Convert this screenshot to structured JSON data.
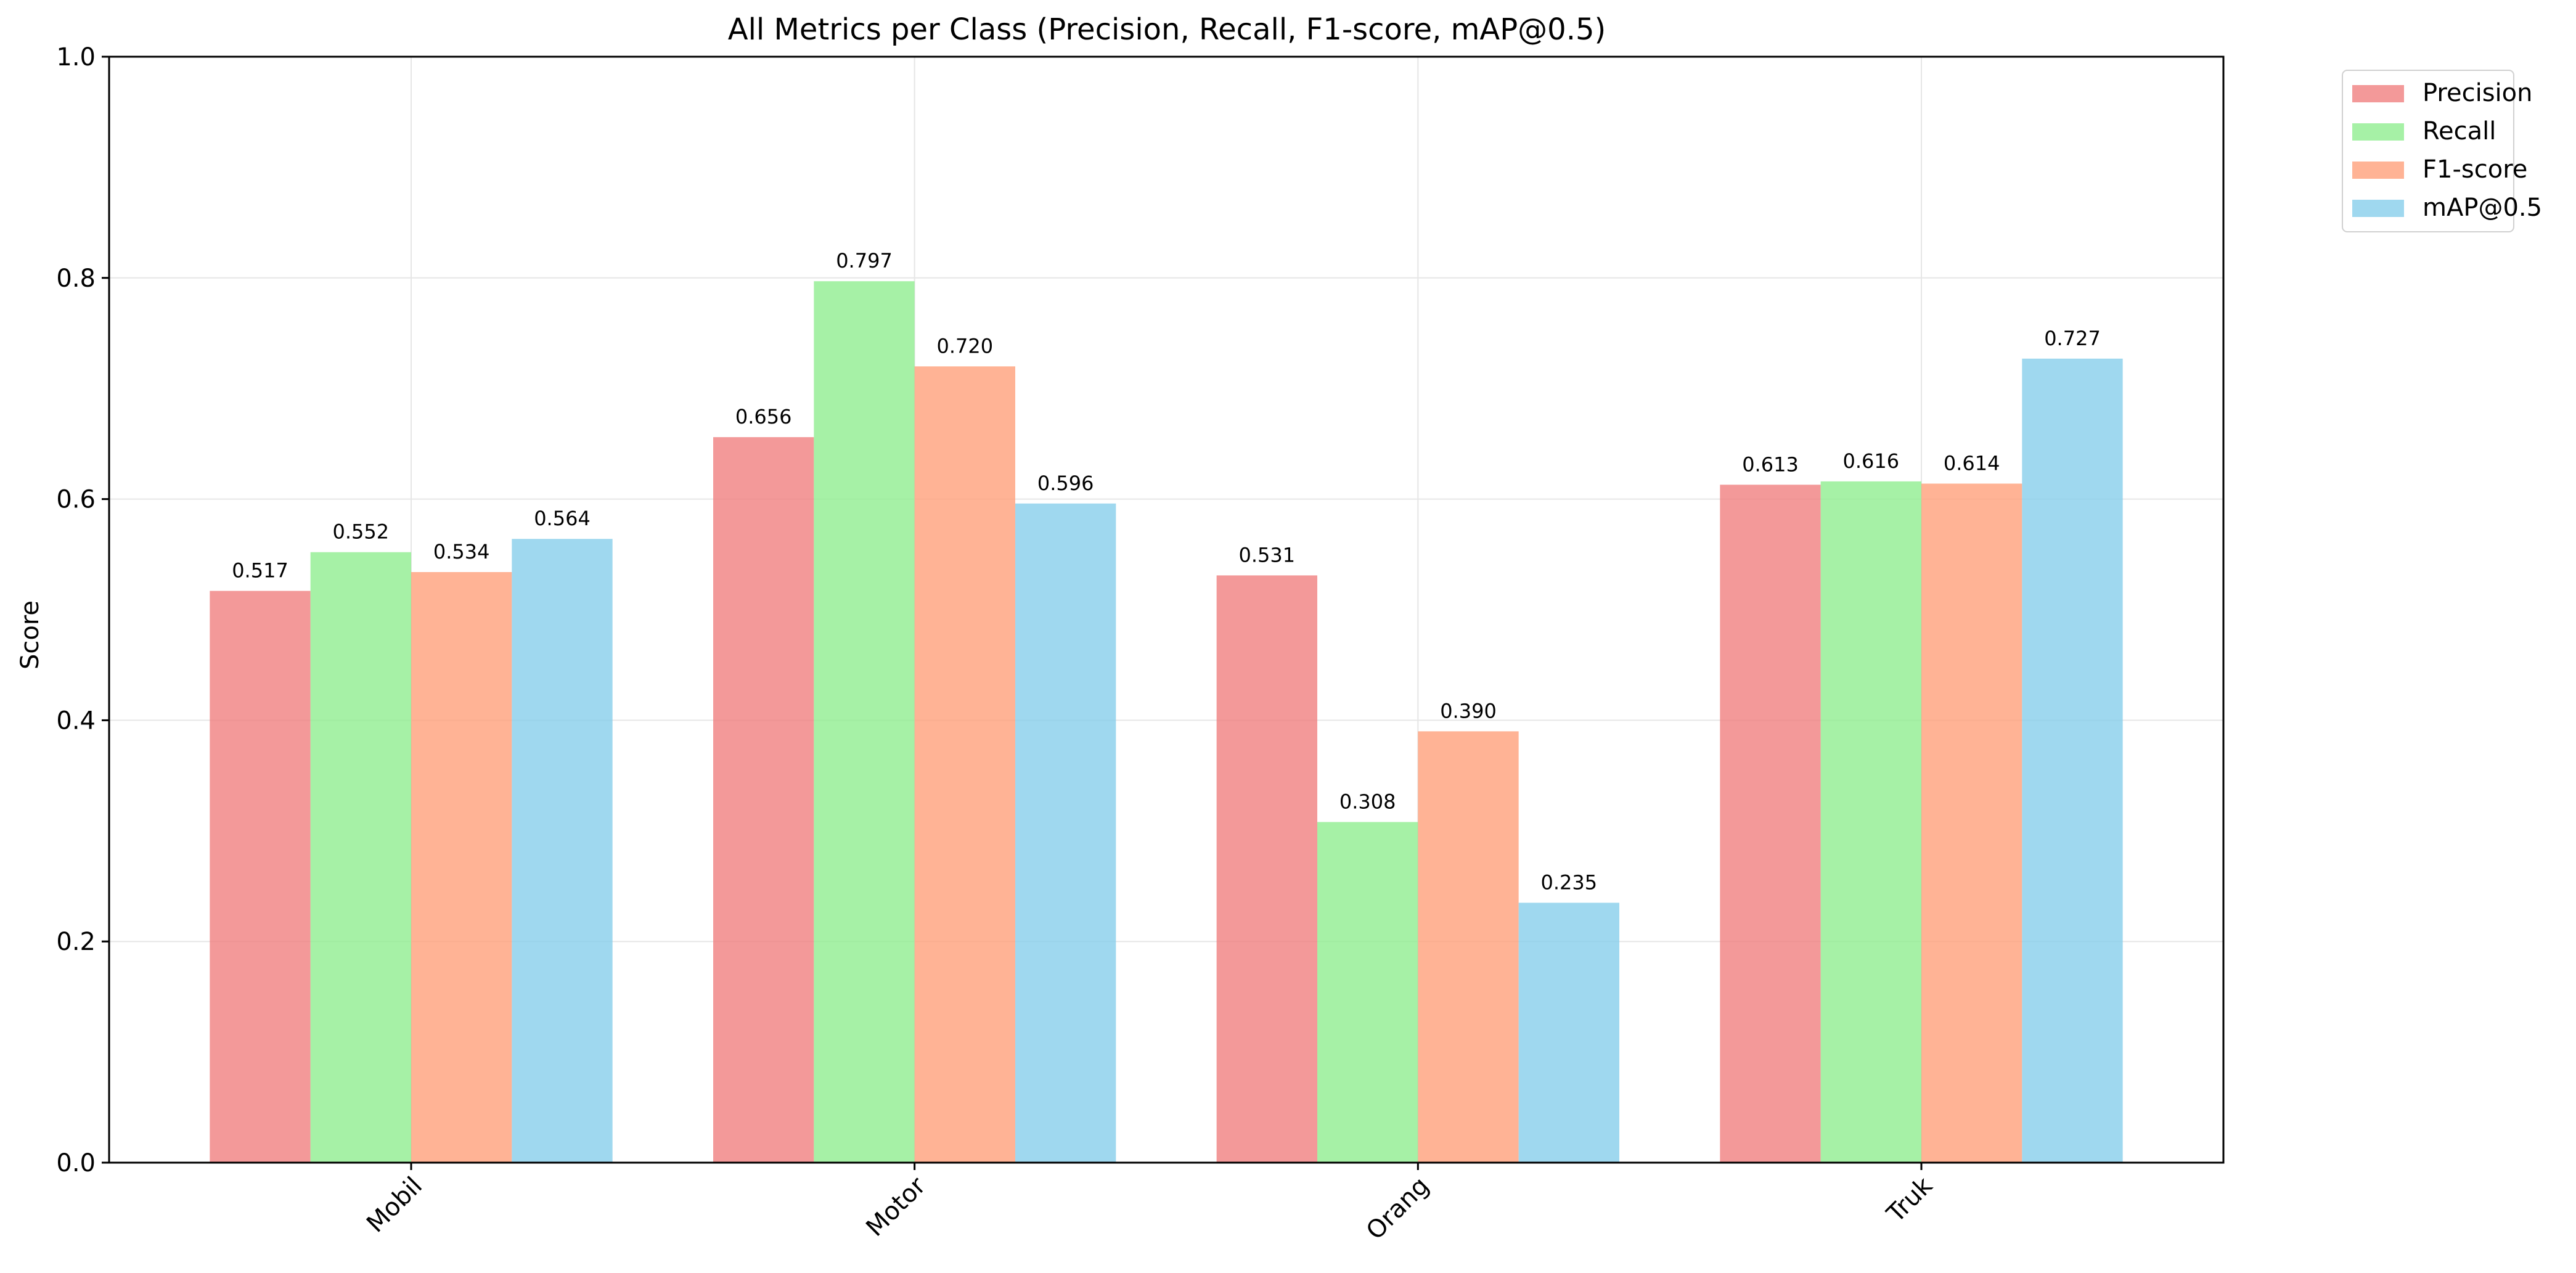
{
  "chart_data": {
    "type": "bar",
    "title": "All Metrics per Class (Precision, Recall, F1-score, mAP@0.5)",
    "xlabel": "",
    "ylabel": "Score",
    "ylim": [
      0,
      1.0
    ],
    "yticks": [
      "0.0",
      "0.2",
      "0.4",
      "0.6",
      "0.8",
      "1.0"
    ],
    "categories": [
      "Mobil",
      "Motor",
      "Orang",
      "Truk"
    ],
    "grid": true,
    "legend_position": "outside-top-right",
    "series": [
      {
        "name": "Precision",
        "color": "#f08080",
        "values": [
          0.517,
          0.656,
          0.531,
          0.613
        ],
        "labels": [
          "0.517",
          "0.656",
          "0.531",
          "0.613"
        ]
      },
      {
        "name": "Recall",
        "color": "#90ee90",
        "values": [
          0.552,
          0.797,
          0.308,
          0.616
        ],
        "labels": [
          "0.552",
          "0.797",
          "0.308",
          "0.616"
        ]
      },
      {
        "name": "F1-score",
        "color": "#ffa07a",
        "values": [
          0.534,
          0.72,
          0.39,
          0.614
        ],
        "labels": [
          "0.534",
          "0.720",
          "0.390",
          "0.614"
        ]
      },
      {
        "name": "mAP@0.5",
        "color": "#87ceeb",
        "values": [
          0.564,
          0.596,
          0.235,
          0.727
        ],
        "labels": [
          "0.564",
          "0.596",
          "0.235",
          "0.727"
        ]
      }
    ]
  }
}
